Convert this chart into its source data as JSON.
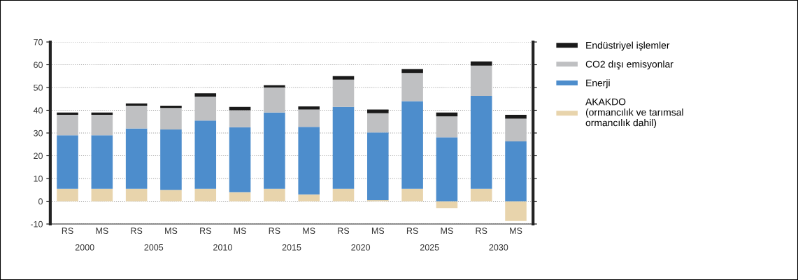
{
  "chart_data": {
    "type": "bar",
    "stacked": true,
    "categories": [
      "RS",
      "MS",
      "RS",
      "MS",
      "RS",
      "MS",
      "RS",
      "MS",
      "RS",
      "MS",
      "RS",
      "MS",
      "RS",
      "MS"
    ],
    "annotations": [
      "2000",
      "2005",
      "2010",
      "2015",
      "2020",
      "2025",
      "2030"
    ],
    "series": [
      {
        "name": "AKAKDO\n(ormancılık ve tarımsal\normancılık dahil)",
        "color": "#e8d4ac",
        "values": [
          5.5,
          5.5,
          5.5,
          5,
          5.5,
          4,
          5.5,
          3,
          5.5,
          0.5,
          5.5,
          -3,
          5.5,
          -8.7
        ]
      },
      {
        "name": "Enerji",
        "color": "#4d8dcc",
        "values": [
          23.5,
          23.5,
          26.5,
          26.5,
          30,
          28.5,
          33.5,
          29.7,
          36,
          29.7,
          38.5,
          28.1,
          40.8,
          26.3
        ]
      },
      {
        "name": "CO2 dışı emisyonlar",
        "color": "#bfc0c2",
        "values": [
          9,
          9,
          10,
          9.5,
          10.5,
          7.5,
          11,
          7.6,
          12,
          8.5,
          12.4,
          9.2,
          13.3,
          10
        ]
      },
      {
        "name": "Endüstriyel işlemler",
        "color": "#1a1a1a",
        "values": [
          1,
          1,
          1,
          1,
          1.5,
          1.5,
          1,
          1.4,
          1.5,
          1.6,
          1.7,
          1.7,
          1.9,
          1.7
        ]
      }
    ],
    "ylim": [
      -10,
      70
    ],
    "yticks": [
      -10,
      0,
      10,
      20,
      30,
      40,
      50,
      60,
      70
    ],
    "grid": "y",
    "legend": "right"
  }
}
